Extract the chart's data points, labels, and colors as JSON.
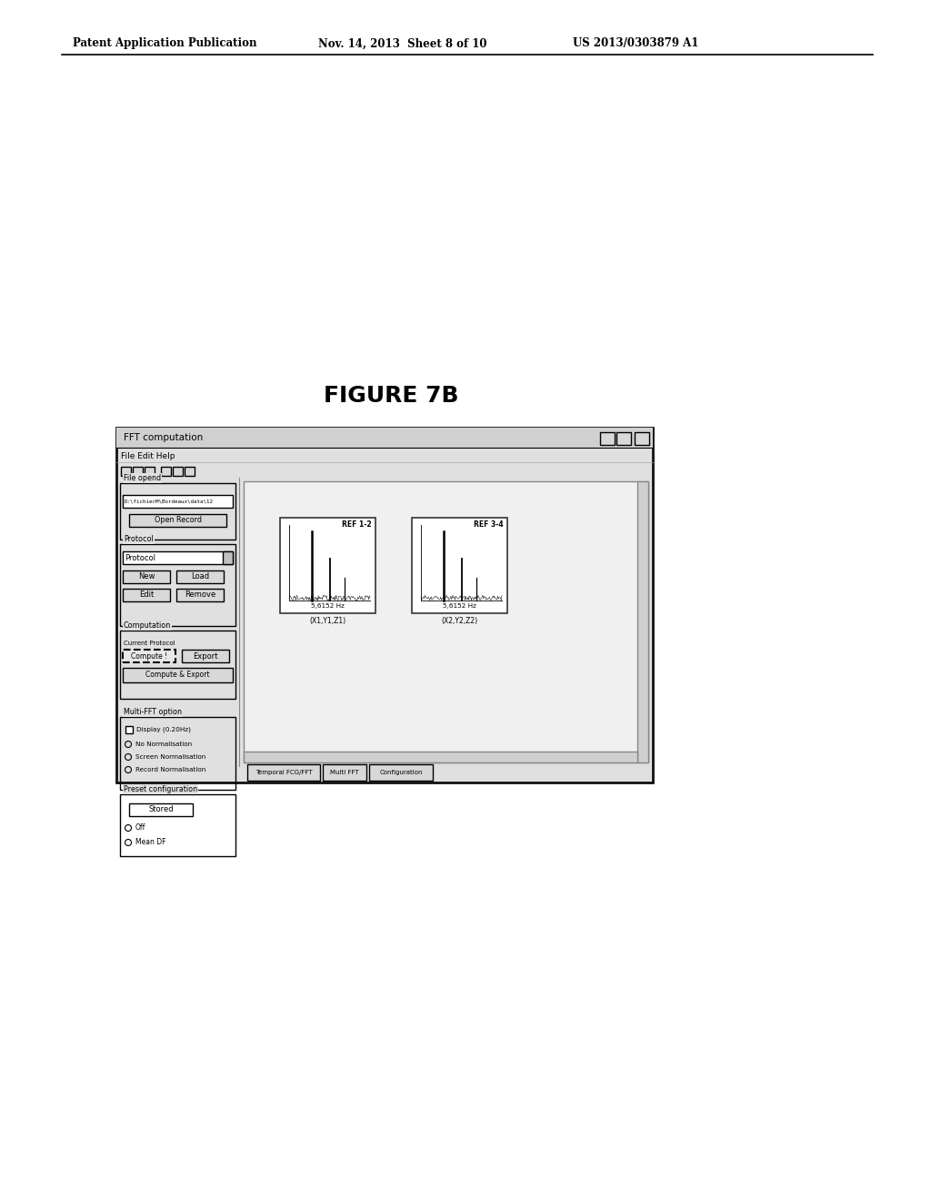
{
  "title": "FIGURE 7B",
  "header_left": "Patent Application Publication",
  "header_center": "Nov. 14, 2013  Sheet 8 of 10",
  "header_right": "US 2013/0303879 A1",
  "window_title": "FFT computation",
  "menu_bar": "File Edit Help",
  "file_opend_label": "File opend",
  "file_path": "D:\\fichierM\\Bordeaux\\data\\12",
  "open_record_btn": "Open Record",
  "protocol_label": "Protocol",
  "protocol_dropdown": "Protocol",
  "btn_new": "New",
  "btn_load": "Load",
  "btn_edit": "Edit",
  "btn_remove": "Remove",
  "computation_label": "Computation",
  "current_protocol_label": "Current Protocol",
  "btn_compute": "Compute !",
  "btn_export": "Export",
  "btn_compute_export": "Compute & Export",
  "chart1_label": "REF 1-2",
  "chart1_freq": "5,6152 Hz",
  "chart1_coord": "(X1,Y1,Z1)",
  "chart2_label": "REF 3-4",
  "chart2_freq": "5,6152 Hz",
  "chart2_coord": "(X2,Y2,Z2)",
  "multi_fft_label": "Multi-FFT option",
  "display_cb": "Display (0.20Hz)",
  "radio1": "No Normalisation",
  "radio2": "Screen Normalisation",
  "radio3": "Record Normalisation",
  "preset_label": "Preset configuration",
  "stored_btn": "Stored",
  "radio_off": "Off",
  "radio_mean": "Mean DF",
  "tab1": "Temporal FCG/FFT",
  "tab2": "Multi FFT",
  "tab3": "Configuration",
  "bg_color": "#ffffff",
  "text_color": "#000000"
}
